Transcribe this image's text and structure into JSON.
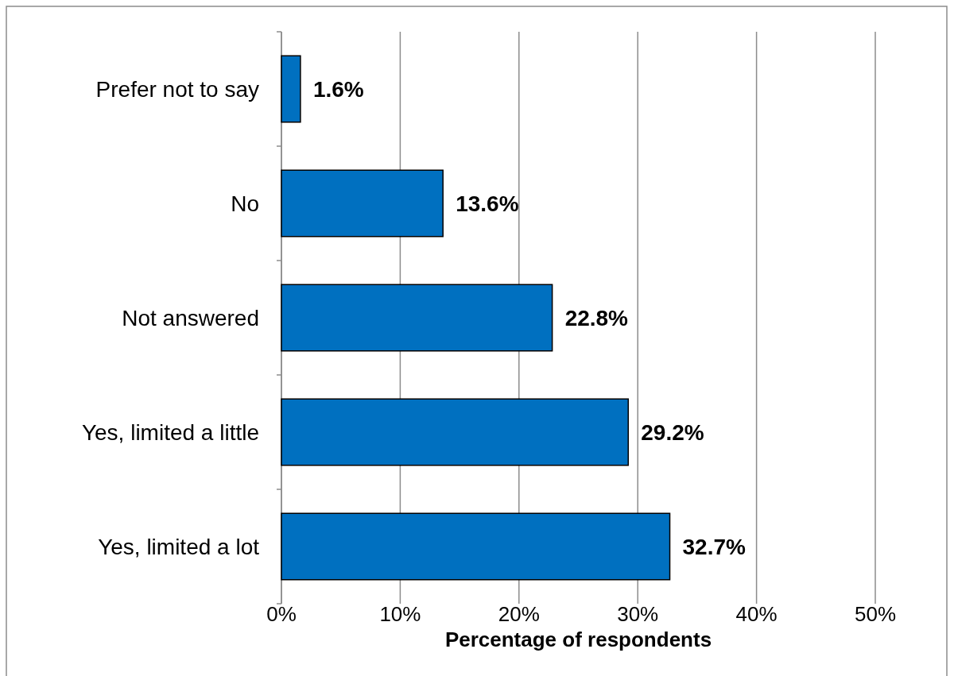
{
  "chart_data": {
    "type": "bar",
    "orientation": "horizontal",
    "xlabel": "Percentage of respondents",
    "categories": [
      "Prefer not to say",
      "No",
      "Not answered",
      "Yes, limited a little",
      "Yes, limited a lot"
    ],
    "values": [
      1.6,
      13.6,
      22.8,
      29.2,
      32.7
    ],
    "value_labels": [
      "1.6%",
      "13.6%",
      "22.8%",
      "29.2%",
      "32.7%"
    ],
    "color": "#0070c0",
    "xlim": [
      0,
      50
    ],
    "xticks": [
      {
        "value": 0,
        "label": "0%"
      },
      {
        "value": 10,
        "label": "10%"
      },
      {
        "value": 20,
        "label": "20%"
      },
      {
        "value": 30,
        "label": "30%"
      },
      {
        "value": 40,
        "label": "40%"
      },
      {
        "value": 50,
        "label": "50%"
      }
    ],
    "grid": "x"
  }
}
